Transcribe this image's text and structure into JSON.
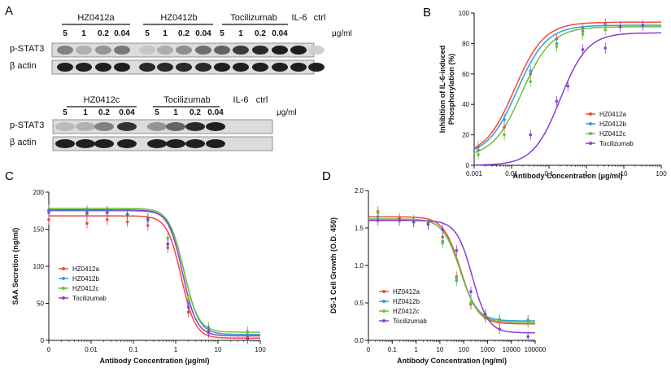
{
  "panels": {
    "a": "A",
    "b": "B",
    "c": "C",
    "d": "D"
  },
  "blot": {
    "units": "μg/ml",
    "row_labels": [
      "p-STAT3",
      "β actin"
    ],
    "top": {
      "groups": [
        "HZ0412a",
        "HZ0412b",
        "Tocilizumab",
        "IL-6",
        "ctrl"
      ],
      "doses": [
        "5",
        "1",
        "0.2",
        "0.04",
        "5",
        "1",
        "0.2",
        "0.04",
        "5",
        "1",
        "0.2",
        "0.04"
      ],
      "pstat3_intensity": [
        0.45,
        0.2,
        0.35,
        0.5,
        0.1,
        0.22,
        0.38,
        0.55,
        0.6,
        0.8,
        0.9,
        0.95,
        0.95,
        0.05
      ],
      "actin_intensity": [
        0.95,
        0.95,
        0.95,
        0.95,
        0.9,
        0.9,
        0.9,
        0.9,
        0.95,
        0.95,
        0.95,
        0.95,
        0.95,
        0.95
      ]
    },
    "bottom": {
      "groups": [
        "HZ0412c",
        "Tocilizumab",
        "IL-6",
        "ctrl"
      ],
      "doses": [
        "5",
        "1",
        "0.2",
        "0.04",
        "5",
        "1",
        "0.2",
        "0.04"
      ],
      "pstat3_intensity": [
        0.15,
        0.2,
        0.45,
        0.85,
        0.35,
        0.6,
        0.9,
        0.95,
        0.0,
        0.0
      ],
      "actin_intensity": [
        0.95,
        0.95,
        0.95,
        0.95,
        0.95,
        0.95,
        0.95,
        0.95,
        0.0,
        0.0
      ]
    }
  },
  "chart_data": [
    {
      "id": "B",
      "type": "line",
      "xscale": "log",
      "xlim": [
        0.001,
        100
      ],
      "ylim": [
        0,
        100
      ],
      "xticks": [
        {
          "v": 0.001,
          "t": "0.001"
        },
        {
          "v": 0.01,
          "t": "0.01"
        },
        {
          "v": 0.1,
          "t": "0.1"
        },
        {
          "v": 1,
          "t": "1"
        },
        {
          "v": 10,
          "t": "10"
        },
        {
          "v": 100,
          "t": "100"
        }
      ],
      "yticks": [
        0,
        20,
        40,
        60,
        80,
        100
      ],
      "xlabel": "Antibody Concentration (μg/ml)",
      "ylabel": [
        "Inhibition of IL-6-induced",
        "Phosphorylation (%)"
      ],
      "legend": "center-right",
      "series": [
        {
          "name": "HZ0412a",
          "color": "#f04a3c",
          "curve": {
            "bottom": 6,
            "top": 94,
            "ec50": 0.012,
            "hill": 1.1
          },
          "x": [
            0.00128,
            0.0064,
            0.032,
            0.16,
            0.8,
            3.2
          ],
          "y": [
            12,
            25,
            60,
            83,
            90,
            93
          ]
        },
        {
          "name": "HZ0412b",
          "color": "#3a9ad9",
          "curve": {
            "bottom": 6,
            "top": 92,
            "ec50": 0.014,
            "hill": 1.1
          },
          "x": [
            0.00128,
            0.0064,
            0.032,
            0.16,
            0.8,
            3.2
          ],
          "y": [
            10,
            30,
            62,
            80,
            88,
            92
          ]
        },
        {
          "name": "HZ0412c",
          "color": "#6cbf3a",
          "curve": {
            "bottom": 5,
            "top": 91,
            "ec50": 0.019,
            "hill": 1.1
          },
          "x": [
            0.00128,
            0.0064,
            0.032,
            0.16,
            0.8,
            3.2
          ],
          "y": [
            7,
            20,
            55,
            78,
            86,
            89
          ]
        },
        {
          "name": "Tocilizumab",
          "color": "#8b3fcf",
          "curve": {
            "bottom": 0,
            "top": 87,
            "ec50": 0.2,
            "hill": 1.2
          },
          "x": [
            0.032,
            0.16,
            0.32,
            0.8,
            3.2,
            8,
            32
          ],
          "y": [
            20,
            42,
            52,
            76,
            77,
            91,
            92
          ]
        }
      ]
    },
    {
      "id": "C",
      "type": "line",
      "xscale": "log",
      "xlim": [
        0.001,
        100
      ],
      "ylim": [
        0,
        200
      ],
      "xticks": [
        {
          "v": 0.001,
          "t": "0"
        },
        {
          "v": 0.01,
          "t": "0.01"
        },
        {
          "v": 0.1,
          "t": "0.1"
        },
        {
          "v": 1,
          "t": "1"
        },
        {
          "v": 10,
          "t": "10"
        },
        {
          "v": 100,
          "t": "100"
        }
      ],
      "yticks": [
        0,
        50,
        100,
        150,
        200
      ],
      "xlabel": "Antibody Concentration (μg/ml)",
      "ylabel": [
        "SAA Secretion (ng/ml)"
      ],
      "legend": "bottom-left",
      "series": [
        {
          "name": "HZ0412a",
          "color": "#f04a3c",
          "curve": {
            "bottom": 3,
            "top": 168,
            "ec50": 1.35,
            "hill": -2.6
          },
          "x": [
            0.001,
            0.008,
            0.024,
            0.072,
            0.22,
            0.65,
            2,
            6,
            50
          ],
          "y": [
            163,
            158,
            163,
            160,
            155,
            125,
            38,
            10,
            5
          ]
        },
        {
          "name": "HZ0412b",
          "color": "#3a9ad9",
          "curve": {
            "bottom": 8,
            "top": 175,
            "ec50": 1.6,
            "hill": -2.5
          },
          "x": [
            0.001,
            0.008,
            0.024,
            0.072,
            0.22,
            0.65,
            2,
            6,
            50
          ],
          "y": [
            172,
            175,
            175,
            170,
            162,
            130,
            50,
            15,
            8
          ]
        },
        {
          "name": "HZ0412c",
          "color": "#6cbf3a",
          "curve": {
            "bottom": 11,
            "top": 178,
            "ec50": 1.55,
            "hill": -2.5
          },
          "x": [
            0.001,
            0.008,
            0.024,
            0.072,
            0.22,
            0.65,
            2,
            6,
            50
          ],
          "y": [
            176,
            170,
            172,
            168,
            165,
            138,
            55,
            18,
            12
          ]
        },
        {
          "name": "Tocilizumab",
          "color": "#8b3fcf",
          "curve": {
            "bottom": 6,
            "top": 176,
            "ec50": 1.45,
            "hill": -2.6
          },
          "x": [
            0.001,
            0.008,
            0.024,
            0.072,
            0.22,
            0.65,
            2,
            6,
            50
          ],
          "y": [
            175,
            172,
            173,
            170,
            164,
            130,
            45,
            12,
            2
          ]
        }
      ]
    },
    {
      "id": "D",
      "type": "line",
      "xscale": "log",
      "xlim": [
        0.01,
        100000
      ],
      "ylim": [
        0,
        2.0
      ],
      "xticks": [
        {
          "v": 0.01,
          "t": "0"
        },
        {
          "v": 0.1,
          "t": "0.1"
        },
        {
          "v": 1,
          "t": "1"
        },
        {
          "v": 10,
          "t": "10"
        },
        {
          "v": 100,
          "t": "100"
        },
        {
          "v": 1000,
          "t": "1000"
        },
        {
          "v": 10000,
          "t": "10000"
        },
        {
          "v": 100000,
          "t": "100000"
        }
      ],
      "yticks": [
        {
          "v": 0,
          "t": "0.0"
        },
        {
          "v": 0.5,
          "t": "0.5"
        },
        {
          "v": 1.0,
          "t": "1.0"
        },
        {
          "v": 1.5,
          "t": "1.5"
        },
        {
          "v": 2.0,
          "t": "2.0"
        }
      ],
      "xlabel": "Antibody Concentration (ng/ml)",
      "ylabel": [
        "DS-1 Cell Growth (O.D. 450)"
      ],
      "legend": "bottom-left",
      "series": [
        {
          "name": "HZ0412a",
          "color": "#f04a3c",
          "curve": {
            "bottom": 0.22,
            "top": 1.65,
            "ec50": 75,
            "hill": -1.2
          },
          "x": [
            0.025,
            0.2,
            0.8,
            3.2,
            13,
            50,
            200,
            800,
            3200,
            50000
          ],
          "y": [
            1.72,
            1.63,
            1.6,
            1.56,
            1.38,
            0.85,
            0.48,
            0.3,
            0.25,
            0.25
          ]
        },
        {
          "name": "HZ0412b",
          "color": "#3a9ad9",
          "curve": {
            "bottom": 0.26,
            "top": 1.62,
            "ec50": 70,
            "hill": -1.2
          },
          "x": [
            0.025,
            0.2,
            0.8,
            3.2,
            13,
            50,
            200,
            800,
            3200,
            50000
          ],
          "y": [
            1.65,
            1.6,
            1.58,
            1.55,
            1.32,
            0.8,
            0.5,
            0.32,
            0.28,
            0.27
          ]
        },
        {
          "name": "HZ0412c",
          "color": "#6cbf3a",
          "curve": {
            "bottom": 0.24,
            "top": 1.62,
            "ec50": 72,
            "hill": -1.2
          },
          "x": [
            0.025,
            0.2,
            0.8,
            3.2,
            13,
            50,
            200,
            800,
            3200,
            50000
          ],
          "y": [
            1.7,
            1.6,
            1.6,
            1.56,
            1.3,
            0.82,
            0.5,
            0.31,
            0.26,
            0.24
          ]
        },
        {
          "name": "Tocilizumab",
          "color": "#8b3fcf",
          "curve": {
            "bottom": 0.1,
            "top": 1.6,
            "ec50": 230,
            "hill": -1.3
          },
          "x": [
            0.025,
            0.2,
            0.8,
            3.2,
            13,
            50,
            200,
            800,
            3200,
            50000
          ],
          "y": [
            1.6,
            1.6,
            1.58,
            1.55,
            1.48,
            1.2,
            0.65,
            0.35,
            0.15,
            0.05
          ]
        }
      ]
    }
  ]
}
